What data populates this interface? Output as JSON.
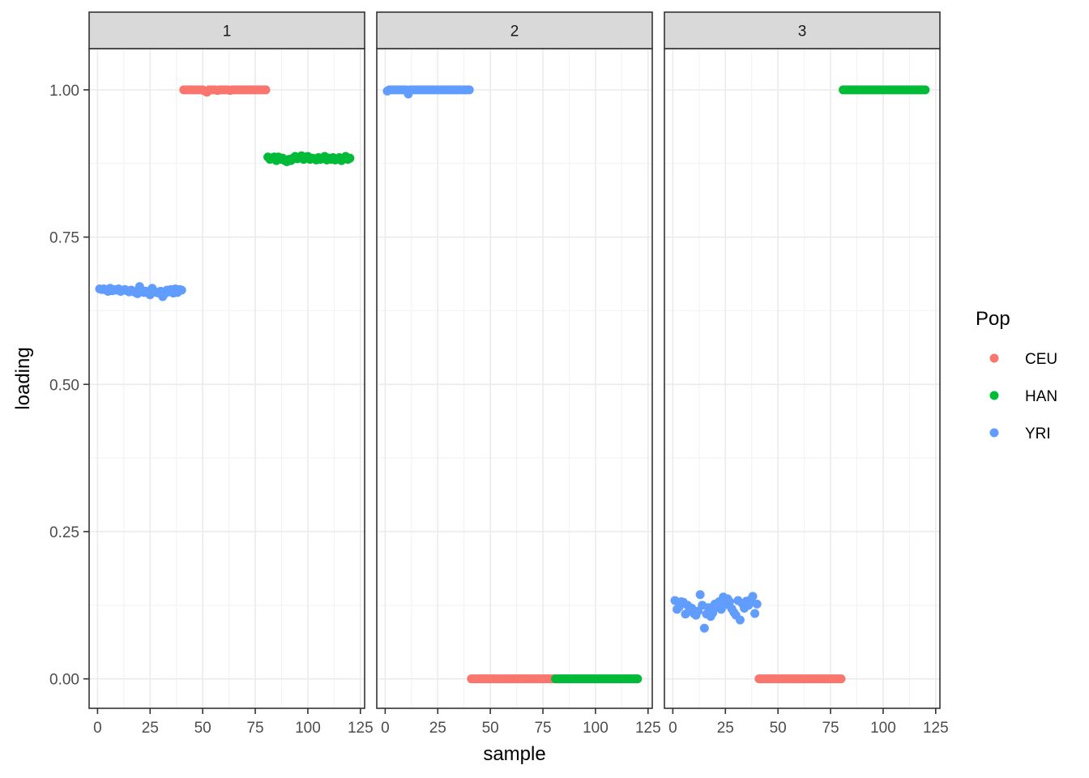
{
  "chart_data": {
    "type": "scatter",
    "xlabel": "sample",
    "ylabel": "loading",
    "xlim": [
      -4,
      127
    ],
    "ylim": [
      -0.05,
      1.07
    ],
    "x_ticks": [
      0,
      25,
      50,
      75,
      100,
      125
    ],
    "x_tick_labels": [
      "0",
      "25",
      "50",
      "75",
      "100",
      "125"
    ],
    "y_ticks": [
      0.0,
      0.25,
      0.5,
      0.75,
      1.0
    ],
    "y_tick_labels": [
      "0.00",
      "0.25",
      "0.50",
      "0.75",
      "1.00"
    ],
    "grid": true,
    "legend": {
      "title": "Pop",
      "position": "right",
      "entries": [
        {
          "name": "CEU",
          "color": "#F8766D"
        },
        {
          "name": "HAN",
          "color": "#00BA38"
        },
        {
          "name": "YRI",
          "color": "#619CFF"
        }
      ]
    },
    "facets": [
      {
        "label": "1",
        "series": [
          {
            "name": "YRI",
            "x_range": [
              1,
              40
            ],
            "values": [
              0.662,
              0.661,
              0.662,
              0.66,
              0.658,
              0.663,
              0.659,
              0.661,
              0.66,
              0.662,
              0.658,
              0.66,
              0.661,
              0.659,
              0.657,
              0.66,
              0.658,
              0.656,
              0.654,
              0.666,
              0.66,
              0.656,
              0.658,
              0.655,
              0.652,
              0.663,
              0.658,
              0.656,
              0.655,
              0.658,
              0.649,
              0.654,
              0.66,
              0.657,
              0.661,
              0.655,
              0.662,
              0.656,
              0.661,
              0.66
            ]
          },
          {
            "name": "CEU",
            "x_range": [
              41,
              80
            ],
            "values": [
              1.0,
              1.0,
              1.0,
              1.0,
              1.0,
              1.0,
              1.0,
              1.0,
              1.0,
              1.0,
              0.998,
              0.996,
              1.0,
              1.0,
              1.0,
              1.0,
              0.999,
              1.0,
              1.0,
              1.0,
              1.0,
              1.0,
              0.999,
              1.0,
              1.0,
              1.0,
              1.0,
              1.0,
              1.0,
              1.0,
              1.0,
              1.0,
              1.0,
              1.0,
              1.0,
              1.0,
              1.0,
              1.0,
              1.0,
              1.0
            ]
          },
          {
            "name": "HAN",
            "x_range": [
              81,
              120
            ],
            "values": [
              0.886,
              0.882,
              0.884,
              0.886,
              0.88,
              0.886,
              0.882,
              0.884,
              0.88,
              0.878,
              0.882,
              0.88,
              0.884,
              0.887,
              0.883,
              0.885,
              0.888,
              0.882,
              0.886,
              0.887,
              0.882,
              0.884,
              0.883,
              0.881,
              0.885,
              0.882,
              0.884,
              0.887,
              0.881,
              0.884,
              0.882,
              0.885,
              0.881,
              0.883,
              0.885,
              0.88,
              0.884,
              0.887,
              0.882,
              0.884
            ]
          }
        ]
      },
      {
        "label": "2",
        "series": [
          {
            "name": "YRI",
            "x_range": [
              1,
              40
            ],
            "values": [
              0.998,
              1.0,
              1.0,
              1.0,
              1.0,
              1.0,
              1.0,
              1.0,
              1.0,
              1.0,
              0.993,
              1.0,
              1.0,
              1.0,
              1.0,
              1.0,
              1.0,
              1.0,
              1.0,
              1.0,
              1.0,
              1.0,
              1.0,
              1.0,
              1.0,
              1.0,
              1.0,
              1.0,
              1.0,
              1.0,
              1.0,
              1.0,
              1.0,
              1.0,
              1.0,
              1.0,
              1.0,
              1.0,
              1.0,
              1.0
            ]
          },
          {
            "name": "CEU",
            "x_range": [
              41,
              80
            ],
            "values": [
              0.0,
              0.0,
              0.0,
              0.0,
              0.0,
              0.0,
              0.0,
              0.0,
              0.0,
              0.0,
              0.0,
              0.0,
              0.0,
              0.0,
              0.0,
              0.0,
              0.0,
              0.0,
              0.0,
              0.0,
              0.0,
              0.0,
              0.0,
              0.0,
              0.0,
              0.0,
              0.0,
              0.0,
              0.0,
              0.0,
              0.0,
              0.0,
              0.0,
              0.0,
              0.0,
              0.0,
              0.0,
              0.0,
              0.0,
              0.0
            ]
          },
          {
            "name": "HAN",
            "x_range": [
              81,
              120
            ],
            "values": [
              0.0,
              0.0,
              0.0,
              0.0,
              0.0,
              0.0,
              0.0,
              0.0,
              0.0,
              0.0,
              0.0,
              0.0,
              0.0,
              0.0,
              0.0,
              0.0,
              0.0,
              0.0,
              0.0,
              0.0,
              0.0,
              0.0,
              0.0,
              0.0,
              0.0,
              0.0,
              0.0,
              0.0,
              0.0,
              0.0,
              0.0,
              0.0,
              0.0,
              0.0,
              0.0,
              0.0,
              0.0,
              0.0,
              0.0,
              0.0
            ]
          }
        ]
      },
      {
        "label": "3",
        "series": [
          {
            "name": "YRI",
            "x_range": [
              1,
              40
            ],
            "values": [
              0.133,
              0.118,
              0.122,
              0.131,
              0.13,
              0.11,
              0.125,
              0.116,
              0.12,
              0.111,
              0.108,
              0.115,
              0.143,
              0.125,
              0.086,
              0.11,
              0.121,
              0.106,
              0.112,
              0.127,
              0.122,
              0.131,
              0.118,
              0.139,
              0.126,
              0.136,
              0.131,
              0.119,
              0.113,
              0.108,
              0.133,
              0.1,
              0.128,
              0.12,
              0.132,
              0.125,
              0.134,
              0.14,
              0.111,
              0.127
            ]
          },
          {
            "name": "CEU",
            "x_range": [
              41,
              80
            ],
            "values": [
              0.0,
              0.0,
              0.0,
              0.0,
              0.0,
              0.0,
              0.0,
              0.0,
              0.0,
              0.0,
              0.0,
              0.0,
              0.0,
              0.0,
              0.0,
              0.0,
              0.0,
              0.0,
              0.0,
              0.0,
              0.0,
              0.0,
              0.0,
              0.0,
              0.0,
              0.0,
              0.0,
              0.0,
              0.0,
              0.0,
              0.0,
              0.0,
              0.0,
              0.0,
              0.0,
              0.0,
              0.0,
              0.0,
              0.0,
              0.0
            ]
          },
          {
            "name": "HAN",
            "x_range": [
              81,
              120
            ],
            "values": [
              1.0,
              1.0,
              1.0,
              1.0,
              1.0,
              1.0,
              1.0,
              1.0,
              1.0,
              1.0,
              1.0,
              1.0,
              1.0,
              1.0,
              1.0,
              1.0,
              1.0,
              1.0,
              1.0,
              1.0,
              1.0,
              1.0,
              1.0,
              1.0,
              1.0,
              1.0,
              1.0,
              1.0,
              1.0,
              1.0,
              1.0,
              1.0,
              1.0,
              1.0,
              1.0,
              1.0,
              1.0,
              1.0,
              1.0,
              1.0
            ]
          }
        ]
      }
    ]
  }
}
